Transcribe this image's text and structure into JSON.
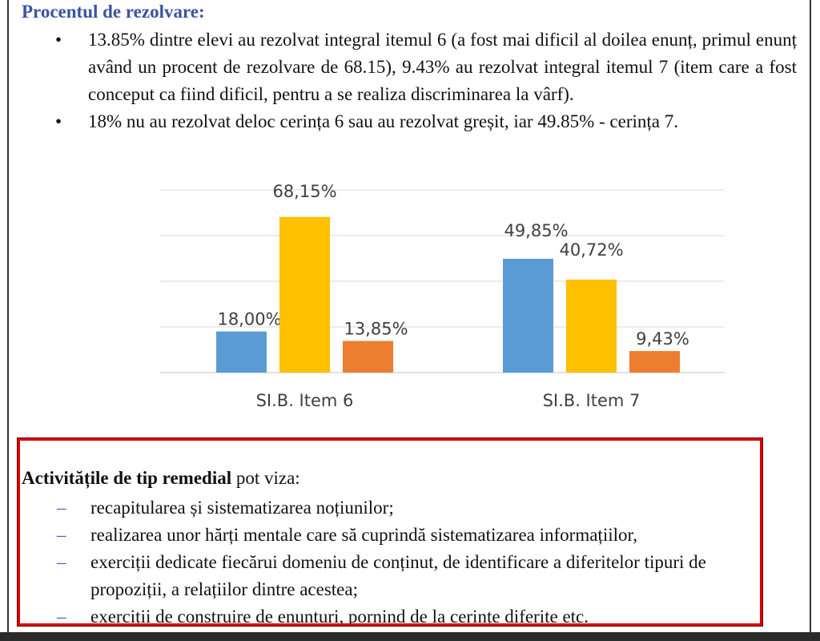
{
  "heading": "Procentul de rezolvare:",
  "bullets": [
    "13.85% dintre elevi au rezolvat integral itemul 6 (a fost mai dificil al doilea enunț, primul enunț având un procent de rezolvare de 68.15), 9.43% au rezolvat integral itemul 7 (item care a fost conceput ca fiind dificil, pentru a se realiza discriminarea la vârf).",
    "18% nu au rezolvat deloc cerința 6 sau au rezolvat greșit, iar 49.85% - cerința 7."
  ],
  "chart_data": {
    "type": "bar",
    "categories": [
      "SI.B. Item 6",
      "SI.B. Item 7"
    ],
    "series": [
      {
        "values": [
          18.0,
          49.85
        ],
        "labels": [
          "18,00%",
          "49,85%"
        ],
        "color": "#5b9bd5"
      },
      {
        "values": [
          68.15,
          40.72
        ],
        "labels": [
          "68,15%",
          "40,72%"
        ],
        "color": "#ffc000"
      },
      {
        "values": [
          13.85,
          9.43
        ],
        "labels": [
          "13,85%",
          "9,43%"
        ],
        "color": "#ed7d31"
      }
    ],
    "ylim": [
      0,
      80
    ],
    "grid": true
  },
  "remedial": {
    "title_bold": "Activitățile de tip remedial",
    "title_rest": " pot viza:",
    "items": [
      "recapitularea și sistematizarea noțiunilor;",
      "realizarea unor hărți mentale care să cuprindă sistematizarea informațiilor,",
      "exerciții dedicate fiecărui domeniu de conținut, de identificare a diferitelor tipuri de propoziții, a relațiilor dintre acestea;",
      "exerciții de construire de enunturi, pornind de la cerințe diferite etc."
    ]
  }
}
